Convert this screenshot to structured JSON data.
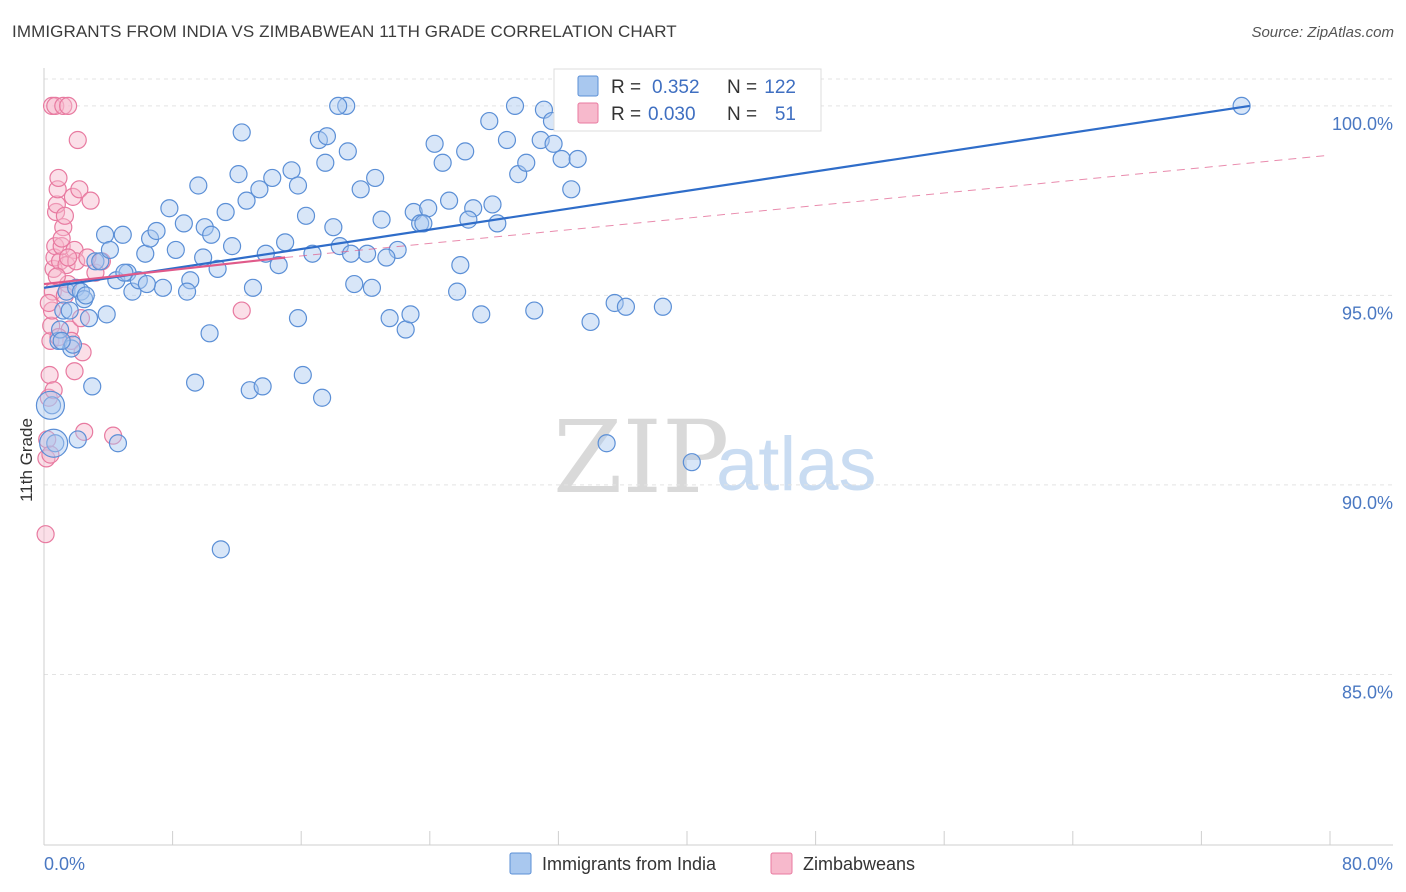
{
  "title": "IMMIGRANTS FROM INDIA VS ZIMBABWEAN 11TH GRADE CORRELATION CHART",
  "source": "Source: ZipAtlas.com",
  "watermark": {
    "zip": "ZIP",
    "atlas": "atlas"
  },
  "colors": {
    "blue_fill": "#a9c8ef",
    "blue_stroke": "#5b8fd6",
    "blue_line": "#2f6dc9",
    "pink_fill": "#f7b9cc",
    "pink_stroke": "#e87aa0",
    "pink_line": "#e05a8a",
    "axis_text": "#4a78c2",
    "grid": "#e3e3e3"
  },
  "stats": {
    "india": {
      "r_label": "R =",
      "r_value": "0.352",
      "n_label": "N =",
      "n_value": "122"
    },
    "zimbabwe": {
      "r_label": "R =",
      "r_value": "0.030",
      "n_label": "N =",
      "n_value": "51"
    }
  },
  "chart_data": {
    "type": "scatter",
    "title": "IMMIGRANTS FROM INDIA VS ZIMBABWEAN 11TH GRADE CORRELATION CHART",
    "xlabel": "",
    "ylabel": "11th Grade",
    "xlim": [
      0,
      80
    ],
    "ylim": [
      80.5,
      101.0
    ],
    "x_tick_labels": {
      "min": "0.0%",
      "max": "80.0%"
    },
    "y_ticks": [
      {
        "value": 85,
        "label": "85.0%"
      },
      {
        "value": 90,
        "label": "90.0%"
      },
      {
        "value": 95,
        "label": "95.0%"
      },
      {
        "value": 100,
        "label": "100.0%"
      }
    ],
    "legend": [
      "Immigrants from India",
      "Zimbabweans"
    ],
    "series": [
      {
        "name": "Immigrants from India",
        "trend": {
          "x": [
            0,
            75
          ],
          "y": [
            95.2,
            100.0
          ],
          "style": "solid"
        },
        "points": [
          [
            0.5,
            92.1
          ],
          [
            0.7,
            91.1
          ],
          [
            0.9,
            93.8
          ],
          [
            1.0,
            94.1
          ],
          [
            1.2,
            94.6
          ],
          [
            1.4,
            95.1
          ],
          [
            1.6,
            94.6
          ],
          [
            1.7,
            93.6
          ],
          [
            2.0,
            95.2
          ],
          [
            2.3,
            95.1
          ],
          [
            2.5,
            94.9
          ],
          [
            2.8,
            94.4
          ],
          [
            3.2,
            95.9
          ],
          [
            3.5,
            95.9
          ],
          [
            3.8,
            96.6
          ],
          [
            4.1,
            96.2
          ],
          [
            4.5,
            95.4
          ],
          [
            4.9,
            96.6
          ],
          [
            5.2,
            95.6
          ],
          [
            5.5,
            95.1
          ],
          [
            5.9,
            95.4
          ],
          [
            6.3,
            96.1
          ],
          [
            6.6,
            96.5
          ],
          [
            7.0,
            96.7
          ],
          [
            7.4,
            95.2
          ],
          [
            7.8,
            97.3
          ],
          [
            8.2,
            96.2
          ],
          [
            8.7,
            96.9
          ],
          [
            9.1,
            95.4
          ],
          [
            9.6,
            97.9
          ],
          [
            10.0,
            96.8
          ],
          [
            10.4,
            96.6
          ],
          [
            10.8,
            95.7
          ],
          [
            11.3,
            97.2
          ],
          [
            11.7,
            96.3
          ],
          [
            12.1,
            98.2
          ],
          [
            12.6,
            97.5
          ],
          [
            13.0,
            95.2
          ],
          [
            13.4,
            97.8
          ],
          [
            13.8,
            96.1
          ],
          [
            14.2,
            98.1
          ],
          [
            14.6,
            95.8
          ],
          [
            15.0,
            96.4
          ],
          [
            15.4,
            98.3
          ],
          [
            15.8,
            97.9
          ],
          [
            16.3,
            97.1
          ],
          [
            16.7,
            96.1
          ],
          [
            17.1,
            99.1
          ],
          [
            17.5,
            98.5
          ],
          [
            18.0,
            96.8
          ],
          [
            18.4,
            96.3
          ],
          [
            18.9,
            98.8
          ],
          [
            19.3,
            95.3
          ],
          [
            19.7,
            97.8
          ],
          [
            20.1,
            96.1
          ],
          [
            20.6,
            98.1
          ],
          [
            21.0,
            97.0
          ],
          [
            21.5,
            94.4
          ],
          [
            22.0,
            96.2
          ],
          [
            22.5,
            94.1
          ],
          [
            23.0,
            97.2
          ],
          [
            23.4,
            96.9
          ],
          [
            23.9,
            97.3
          ],
          [
            24.3,
            99.0
          ],
          [
            24.8,
            98.5
          ],
          [
            25.2,
            97.5
          ],
          [
            25.7,
            95.1
          ],
          [
            26.2,
            98.8
          ],
          [
            26.7,
            97.3
          ],
          [
            27.2,
            94.5
          ],
          [
            27.7,
            99.6
          ],
          [
            28.2,
            96.9
          ],
          [
            28.8,
            99.1
          ],
          [
            29.5,
            98.2
          ],
          [
            30.0,
            98.5
          ],
          [
            30.5,
            94.6
          ],
          [
            31.1,
            99.9
          ],
          [
            31.6,
            99.6
          ],
          [
            32.2,
            98.6
          ],
          [
            32.8,
            97.8
          ],
          [
            34.0,
            94.3
          ],
          [
            35.0,
            91.1
          ],
          [
            35.5,
            94.8
          ],
          [
            36.2,
            94.7
          ],
          [
            38.5,
            94.7
          ],
          [
            40.3,
            90.6
          ],
          [
            2.1,
            91.2
          ],
          [
            3.0,
            92.6
          ],
          [
            4.6,
            91.1
          ],
          [
            9.4,
            92.7
          ],
          [
            10.3,
            94.0
          ],
          [
            12.8,
            92.5
          ],
          [
            13.6,
            92.6
          ],
          [
            15.8,
            94.4
          ],
          [
            16.1,
            92.9
          ],
          [
            17.3,
            92.3
          ],
          [
            8.9,
            95.1
          ],
          [
            6.4,
            95.3
          ],
          [
            5.0,
            95.6
          ],
          [
            3.9,
            94.5
          ],
          [
            2.6,
            95.0
          ],
          [
            1.8,
            93.7
          ],
          [
            1.1,
            93.8
          ],
          [
            11.0,
            88.3
          ],
          [
            12.3,
            99.3
          ],
          [
            17.6,
            99.2
          ],
          [
            18.8,
            100.0
          ],
          [
            18.3,
            100.0
          ],
          [
            29.3,
            100.0
          ],
          [
            30.9,
            99.1
          ],
          [
            31.7,
            99.0
          ],
          [
            33.2,
            98.6
          ],
          [
            21.3,
            96.0
          ],
          [
            22.8,
            94.5
          ],
          [
            23.6,
            96.9
          ],
          [
            20.4,
            95.2
          ],
          [
            19.1,
            96.1
          ],
          [
            25.9,
            95.8
          ],
          [
            26.4,
            97.0
          ],
          [
            27.9,
            97.4
          ],
          [
            9.9,
            96.0
          ],
          [
            74.5,
            100.0
          ]
        ],
        "large_points": [
          [
            0.4,
            92.1
          ],
          [
            0.6,
            91.1
          ]
        ]
      },
      {
        "name": "Zimbabweans",
        "trend": {
          "x": [
            0,
            15
          ],
          "y": [
            95.3,
            96.0
          ],
          "style": "solid"
        },
        "trend_extension": {
          "x": [
            15,
            80
          ],
          "y": [
            96.0,
            98.7
          ],
          "style": "dashed"
        },
        "points": [
          [
            0.1,
            88.7
          ],
          [
            0.15,
            90.7
          ],
          [
            0.2,
            91.2
          ],
          [
            0.3,
            92.3
          ],
          [
            0.35,
            92.9
          ],
          [
            0.4,
            93.8
          ],
          [
            0.45,
            94.2
          ],
          [
            0.5,
            94.6
          ],
          [
            0.55,
            95.1
          ],
          [
            0.6,
            95.7
          ],
          [
            0.65,
            96.0
          ],
          [
            0.7,
            96.3
          ],
          [
            0.75,
            97.2
          ],
          [
            0.8,
            97.4
          ],
          [
            0.85,
            97.8
          ],
          [
            0.9,
            98.1
          ],
          [
            1.0,
            95.9
          ],
          [
            1.1,
            96.3
          ],
          [
            1.2,
            96.8
          ],
          [
            1.3,
            97.1
          ],
          [
            1.4,
            95.8
          ],
          [
            1.5,
            95.3
          ],
          [
            1.6,
            94.1
          ],
          [
            1.7,
            93.8
          ],
          [
            1.8,
            97.6
          ],
          [
            1.9,
            96.2
          ],
          [
            2.0,
            95.9
          ],
          [
            2.1,
            99.1
          ],
          [
            2.2,
            97.8
          ],
          [
            2.3,
            94.4
          ],
          [
            2.4,
            93.5
          ],
          [
            2.5,
            91.4
          ],
          [
            2.9,
            97.5
          ],
          [
            3.2,
            95.6
          ],
          [
            3.6,
            95.9
          ],
          [
            4.3,
            91.3
          ],
          [
            12.3,
            94.6
          ],
          [
            0.5,
            100.0
          ],
          [
            0.7,
            100.0
          ],
          [
            1.2,
            100.0
          ],
          [
            1.5,
            100.0
          ],
          [
            1.1,
            96.5
          ],
          [
            1.5,
            96.0
          ],
          [
            0.9,
            93.9
          ],
          [
            0.6,
            92.5
          ],
          [
            0.3,
            94.8
          ],
          [
            0.8,
            95.5
          ],
          [
            1.3,
            95.0
          ],
          [
            2.7,
            96.0
          ],
          [
            1.9,
            93.0
          ],
          [
            0.4,
            90.8
          ]
        ]
      }
    ]
  }
}
